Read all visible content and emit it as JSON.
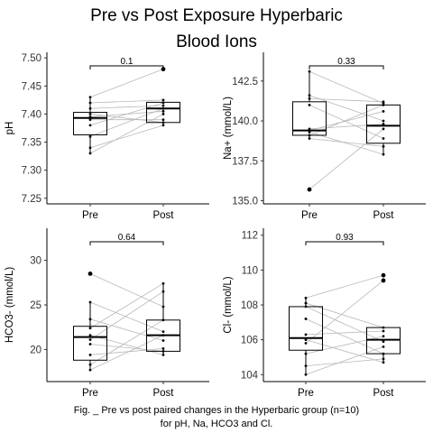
{
  "title": {
    "line1": "Pre vs Post Exposure Hyperbaric",
    "line2": "Blood Ions"
  },
  "caption": {
    "line1": "Fig. _ Pre vs post paired changes in the Hyperbaric group (n=10)",
    "line2": "for pH, Na, HCO3 and Cl."
  },
  "chart_data": [
    {
      "type": "box",
      "ylabel": "pH",
      "categories": [
        "Pre",
        "Post"
      ],
      "ylim": [
        7.24,
        7.51
      ],
      "yticks": [
        7.25,
        7.3,
        7.35,
        7.4,
        7.45,
        7.5
      ],
      "ytick_labels": [
        "7.25",
        "7.30",
        "7.35",
        "7.40",
        "7.45",
        "7.50"
      ],
      "box": {
        "Pre": {
          "q1": 7.363,
          "median": 7.393,
          "q3": 7.403,
          "whisker_low": 7.33,
          "whisker_high": 7.43
        },
        "Post": {
          "q1": 7.385,
          "median": 7.41,
          "q3": 7.421,
          "whisker_low": 7.38,
          "whisker_high": 7.427
        }
      },
      "points": {
        "Pre": [
          7.33,
          7.34,
          7.36,
          7.38,
          7.39,
          7.395,
          7.4,
          7.41,
          7.42,
          7.43
        ],
        "Post": [
          7.38,
          7.385,
          7.39,
          7.4,
          7.405,
          7.41,
          7.415,
          7.42,
          7.425,
          7.48
        ]
      },
      "outliers": {
        "Pre": [],
        "Post": [
          7.48
        ]
      },
      "pairs": [
        [
          7.33,
          7.4
        ],
        [
          7.34,
          7.38
        ],
        [
          7.36,
          7.41
        ],
        [
          7.38,
          7.42
        ],
        [
          7.39,
          7.39
        ],
        [
          7.395,
          7.405
        ],
        [
          7.4,
          7.385
        ],
        [
          7.41,
          7.415
        ],
        [
          7.42,
          7.425
        ],
        [
          7.43,
          7.48
        ]
      ],
      "pvalue_label": "0.1"
    },
    {
      "type": "box",
      "ylabel": "Na+ (mmol/L)",
      "categories": [
        "Pre",
        "Post"
      ],
      "ylim": [
        134.8,
        144.3
      ],
      "yticks": [
        135.0,
        137.5,
        140.0,
        142.5
      ],
      "ytick_labels": [
        "135.0",
        "137.5",
        "140.0",
        "142.5"
      ],
      "box": {
        "Pre": {
          "q1": 139.1,
          "median": 139.4,
          "q3": 141.2,
          "whisker_low": 138.9,
          "whisker_high": 143.1
        },
        "Post": {
          "q1": 138.6,
          "median": 139.7,
          "q3": 141.0,
          "whisker_low": 137.9,
          "whisker_high": 141.2
        }
      },
      "points": {
        "Pre": [
          135.7,
          138.9,
          139.1,
          139.3,
          139.4,
          139.5,
          141.0,
          141.4,
          141.6,
          143.1
        ],
        "Post": [
          137.9,
          138.4,
          138.9,
          139.5,
          139.8,
          140.0,
          140.6,
          141.0,
          141.1,
          141.2
        ]
      },
      "outliers": {
        "Pre": [
          135.7
        ],
        "Post": []
      },
      "pairs": [
        [
          135.7,
          139.5
        ],
        [
          138.9,
          138.4
        ],
        [
          139.1,
          141.0
        ],
        [
          139.3,
          137.9
        ],
        [
          139.4,
          140.6
        ],
        [
          139.5,
          139.8
        ],
        [
          141.0,
          138.9
        ],
        [
          141.4,
          141.2
        ],
        [
          141.6,
          140.0
        ],
        [
          143.1,
          141.1
        ]
      ],
      "pvalue_label": "0.33"
    },
    {
      "type": "box",
      "ylabel": "HCO3- (mmol/L)",
      "categories": [
        "Pre",
        "Post"
      ],
      "ylim": [
        16.4,
        33.6
      ],
      "yticks": [
        20,
        25,
        30
      ],
      "ytick_labels": [
        "20",
        "25",
        "30"
      ],
      "box": {
        "Pre": {
          "q1": 18.8,
          "median": 21.4,
          "q3": 22.6,
          "whisker_low": 17.7,
          "whisker_high": 25.3
        },
        "Post": {
          "q1": 19.8,
          "median": 21.6,
          "q3": 23.3,
          "whisker_low": 19.4,
          "whisker_high": 27.4
        }
      },
      "points": {
        "Pre": [
          17.7,
          18.3,
          19.4,
          20.6,
          21.1,
          21.6,
          22.4,
          23.4,
          25.3,
          28.5
        ],
        "Post": [
          19.4,
          19.8,
          20.1,
          21.0,
          21.6,
          22.0,
          23.3,
          24.8,
          26.5,
          27.4
        ]
      },
      "outliers": {
        "Pre": [
          28.5
        ],
        "Post": []
      },
      "pairs": [
        [
          17.7,
          21.6
        ],
        [
          18.3,
          23.3
        ],
        [
          19.4,
          20.1
        ],
        [
          20.6,
          19.8
        ],
        [
          21.1,
          26.5
        ],
        [
          21.6,
          19.4
        ],
        [
          22.4,
          27.4
        ],
        [
          23.4,
          21.0
        ],
        [
          25.3,
          22.0
        ],
        [
          28.5,
          24.8
        ]
      ],
      "pvalue_label": "0.64"
    },
    {
      "type": "box",
      "ylabel": "Cl- (mmol/L)",
      "categories": [
        "Pre",
        "Post"
      ],
      "ylim": [
        103.6,
        112.4
      ],
      "yticks": [
        104,
        106,
        108,
        110,
        112
      ],
      "ytick_labels": [
        "104",
        "106",
        "108",
        "110",
        "112"
      ],
      "box": {
        "Pre": {
          "q1": 105.4,
          "median": 106.1,
          "q3": 107.9,
          "whisker_low": 104.0,
          "whisker_high": 108.4
        },
        "Post": {
          "q1": 105.2,
          "median": 106.0,
          "q3": 106.7,
          "whisker_low": 104.7,
          "whisker_high": 106.7
        }
      },
      "points": {
        "Pre": [
          104.0,
          104.5,
          105.2,
          105.8,
          106.0,
          106.3,
          107.2,
          107.9,
          108.1,
          108.4
        ],
        "Post": [
          104.7,
          104.9,
          105.2,
          105.6,
          105.9,
          106.2,
          106.5,
          106.7,
          109.4,
          109.7
        ]
      },
      "outliers": {
        "Pre": [],
        "Post": [
          109.4,
          109.7
        ]
      },
      "pairs": [
        [
          104.0,
          105.6
        ],
        [
          104.5,
          104.9
        ],
        [
          105.2,
          106.2
        ],
        [
          105.8,
          109.4
        ],
        [
          106.0,
          104.7
        ],
        [
          106.3,
          106.5
        ],
        [
          107.2,
          105.2
        ],
        [
          107.9,
          105.9
        ],
        [
          108.1,
          106.7
        ],
        [
          108.4,
          109.7
        ]
      ],
      "pvalue_label": "0.93"
    }
  ]
}
